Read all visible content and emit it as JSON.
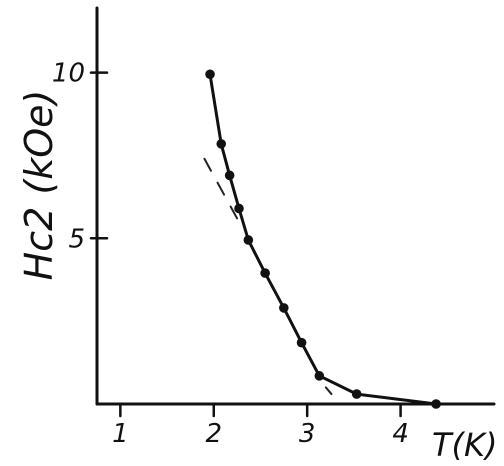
{
  "chart_data": {
    "type": "line",
    "title": "",
    "xlabel": "T(K)",
    "ylabel": "Hc2 (kOe)",
    "xlim": [
      0.75,
      5.0
    ],
    "ylim": [
      0,
      11.95
    ],
    "x_ticks": [
      1,
      2,
      3,
      4
    ],
    "y_ticks": [
      5,
      10
    ],
    "grid": false,
    "legend": "none",
    "series": [
      {
        "x": [
          1.96,
          2.08,
          2.17,
          2.27,
          2.37,
          2.55,
          2.75,
          2.94,
          3.13,
          3.53,
          4.38
        ],
        "y": [
          9.95,
          7.85,
          6.9,
          5.9,
          4.95,
          3.95,
          2.9,
          1.85,
          0.85,
          0.3,
          0.0
        ]
      }
    ],
    "annotations": [
      {
        "type": "dashed-extrapolation",
        "segments": [
          [
            1.9,
            7.4,
            2.25,
            5.6
          ],
          [
            3.2,
            0.5,
            3.32,
            0.1
          ]
        ]
      }
    ]
  }
}
